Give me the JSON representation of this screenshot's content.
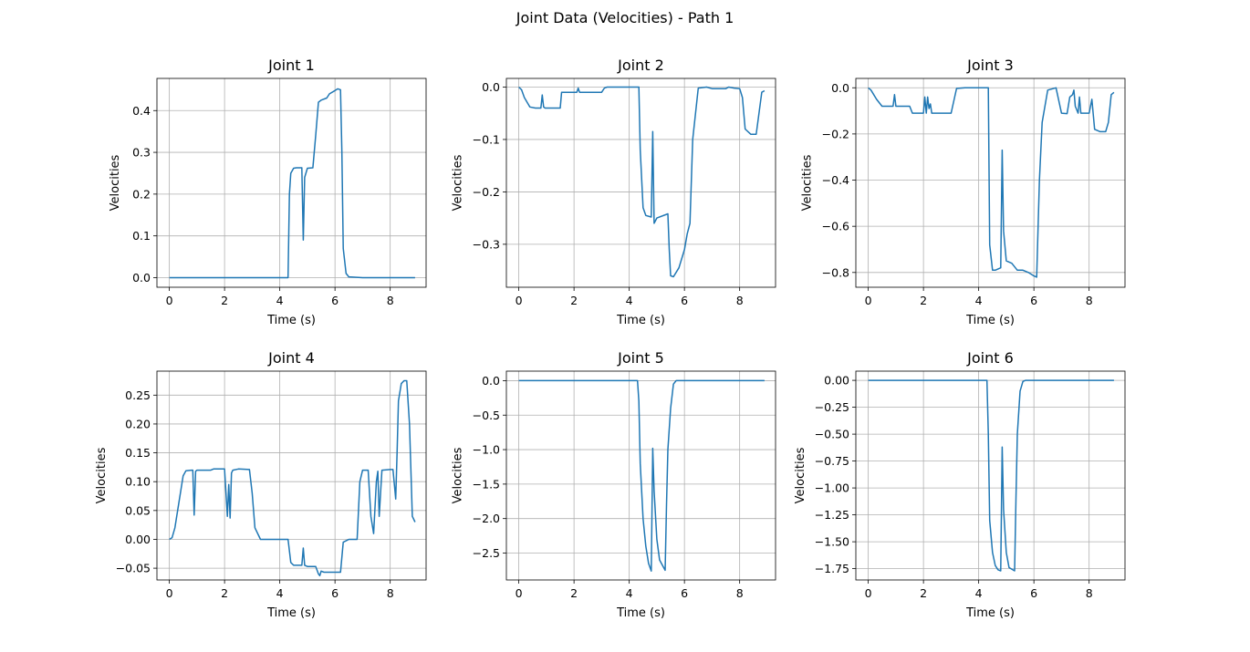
{
  "figure": {
    "title": "Joint Data (Velocities) - Path 1"
  },
  "chart_data": [
    {
      "type": "line",
      "title": "Joint 1",
      "xlabel": "Time (s)",
      "ylabel": "Velocities",
      "xlim": [
        -0.45,
        9.3
      ],
      "ylim": [
        -0.023,
        0.477
      ],
      "xticks": [
        0,
        2,
        4,
        6,
        8
      ],
      "xtick_labels": [
        "0",
        "2",
        "4",
        "6",
        "8"
      ],
      "yticks": [
        0.0,
        0.1,
        0.2,
        0.3,
        0.4
      ],
      "ytick_labels": [
        "0.0",
        "0.1",
        "0.2",
        "0.3",
        "0.4"
      ],
      "grid": true,
      "color": "#1f77b4",
      "series": [
        {
          "x": [
            0.0,
            0.5,
            1.0,
            2.0,
            3.0,
            4.0,
            4.3,
            4.35,
            4.4,
            4.5,
            4.6,
            4.8,
            4.85,
            4.9,
            5.0,
            5.2,
            5.3,
            5.4,
            5.5,
            5.7,
            5.8,
            6.0,
            6.1,
            6.2,
            6.25,
            6.3,
            6.4,
            6.5,
            7.0,
            8.0,
            8.9
          ],
          "y": [
            0.0,
            0.0,
            0.0,
            0.0,
            0.0,
            0.0,
            0.0,
            0.2,
            0.25,
            0.262,
            0.263,
            0.263,
            0.09,
            0.24,
            0.262,
            0.263,
            0.34,
            0.42,
            0.425,
            0.43,
            0.44,
            0.448,
            0.452,
            0.45,
            0.3,
            0.07,
            0.01,
            0.002,
            0.0,
            0.0,
            0.0
          ]
        }
      ]
    },
    {
      "type": "line",
      "title": "Joint 2",
      "xlabel": "Time (s)",
      "ylabel": "Velocities",
      "xlim": [
        -0.45,
        9.3
      ],
      "ylim": [
        -0.382,
        0.0165
      ],
      "xticks": [
        0,
        2,
        4,
        6,
        8
      ],
      "xtick_labels": [
        "0",
        "2",
        "4",
        "6",
        "8"
      ],
      "yticks": [
        0.0,
        -0.1,
        -0.2,
        -0.3
      ],
      "ytick_labels": [
        "0.0",
        "−0.1",
        "−0.2",
        "−0.3"
      ],
      "grid": true,
      "color": "#1f77b4",
      "series": [
        {
          "x": [
            0.0,
            0.1,
            0.2,
            0.4,
            0.6,
            0.8,
            0.85,
            0.9,
            0.95,
            1.0,
            1.5,
            1.55,
            1.6,
            1.8,
            2.0,
            2.1,
            2.15,
            2.2,
            2.3,
            2.5,
            3.0,
            3.1,
            3.2,
            4.0,
            4.35,
            4.4,
            4.5,
            4.6,
            4.8,
            4.85,
            4.9,
            5.0,
            5.4,
            5.45,
            5.5,
            5.6,
            5.8,
            6.0,
            6.1,
            6.2,
            6.3,
            6.5,
            6.8,
            7.0,
            7.5,
            7.6,
            7.8,
            8.0,
            8.1,
            8.2,
            8.4,
            8.6,
            8.8,
            8.9
          ],
          "y": [
            0.0,
            -0.005,
            -0.02,
            -0.038,
            -0.04,
            -0.04,
            -0.015,
            -0.038,
            -0.04,
            -0.04,
            -0.04,
            -0.01,
            -0.01,
            -0.01,
            -0.01,
            -0.01,
            -0.002,
            -0.01,
            -0.01,
            -0.01,
            -0.01,
            -0.002,
            0.0,
            0.0,
            0.0,
            -0.12,
            -0.23,
            -0.245,
            -0.248,
            -0.085,
            -0.26,
            -0.25,
            -0.242,
            -0.31,
            -0.36,
            -0.362,
            -0.345,
            -0.31,
            -0.28,
            -0.26,
            -0.1,
            -0.002,
            0.0,
            -0.003,
            -0.003,
            0.0,
            -0.002,
            -0.003,
            -0.02,
            -0.08,
            -0.09,
            -0.09,
            -0.01,
            -0.007
          ]
        }
      ]
    },
    {
      "type": "line",
      "title": "Joint 3",
      "xlabel": "Time (s)",
      "ylabel": "Velocities",
      "xlim": [
        -0.45,
        9.3
      ],
      "ylim": [
        -0.864,
        0.0405
      ],
      "xticks": [
        0,
        2,
        4,
        6,
        8
      ],
      "xtick_labels": [
        "0",
        "2",
        "4",
        "6",
        "8"
      ],
      "yticks": [
        0.0,
        -0.2,
        -0.4,
        -0.6,
        -0.8
      ],
      "ytick_labels": [
        "0.0",
        "−0.2",
        "−0.4",
        "−0.6",
        "−0.8"
      ],
      "grid": true,
      "color": "#1f77b4",
      "series": [
        {
          "x": [
            0.0,
            0.1,
            0.3,
            0.5,
            0.9,
            0.95,
            1.0,
            1.5,
            1.6,
            2.0,
            2.05,
            2.1,
            2.15,
            2.2,
            2.25,
            2.3,
            2.5,
            3.0,
            3.2,
            3.5,
            4.0,
            4.35,
            4.4,
            4.5,
            4.6,
            4.8,
            4.85,
            4.9,
            5.0,
            5.2,
            5.4,
            5.5,
            5.6,
            5.8,
            6.0,
            6.1,
            6.2,
            6.3,
            6.5,
            6.8,
            7.0,
            7.2,
            7.3,
            7.4,
            7.45,
            7.5,
            7.6,
            7.65,
            7.7,
            8.0,
            8.1,
            8.2,
            8.4,
            8.6,
            8.7,
            8.8,
            8.9
          ],
          "y": [
            0.0,
            -0.01,
            -0.05,
            -0.08,
            -0.08,
            -0.03,
            -0.08,
            -0.08,
            -0.11,
            -0.11,
            -0.04,
            -0.11,
            -0.04,
            -0.09,
            -0.07,
            -0.11,
            -0.11,
            -0.11,
            -0.003,
            0.0,
            0.0,
            0.0,
            -0.68,
            -0.79,
            -0.79,
            -0.78,
            -0.27,
            -0.62,
            -0.75,
            -0.76,
            -0.79,
            -0.79,
            -0.79,
            -0.8,
            -0.815,
            -0.82,
            -0.4,
            -0.15,
            -0.01,
            0.0,
            -0.11,
            -0.112,
            -0.04,
            -0.03,
            -0.01,
            -0.08,
            -0.11,
            -0.04,
            -0.11,
            -0.11,
            -0.05,
            -0.18,
            -0.19,
            -0.19,
            -0.15,
            -0.03,
            -0.02
          ]
        }
      ]
    },
    {
      "type": "line",
      "title": "Joint 4",
      "xlabel": "Time (s)",
      "ylabel": "Velocities",
      "xlim": [
        -0.45,
        9.3
      ],
      "ylim": [
        -0.0704,
        0.2916
      ],
      "xticks": [
        0,
        2,
        4,
        6,
        8
      ],
      "xtick_labels": [
        "0",
        "2",
        "4",
        "6",
        "8"
      ],
      "yticks": [
        -0.05,
        0.0,
        0.05,
        0.1,
        0.15,
        0.2,
        0.25
      ],
      "ytick_labels": [
        "−0.05",
        "0.00",
        "0.05",
        "0.10",
        "0.15",
        "0.20",
        "0.25"
      ],
      "grid": true,
      "color": "#1f77b4",
      "series": [
        {
          "x": [
            0.0,
            0.1,
            0.2,
            0.3,
            0.4,
            0.5,
            0.6,
            0.8,
            0.85,
            0.9,
            0.95,
            1.0,
            1.5,
            1.6,
            1.8,
            2.0,
            2.1,
            2.15,
            2.2,
            2.25,
            2.3,
            2.5,
            2.9,
            3.0,
            3.1,
            3.3,
            4.0,
            4.3,
            4.4,
            4.5,
            4.8,
            4.85,
            4.9,
            5.0,
            5.3,
            5.4,
            5.45,
            5.5,
            5.6,
            6.0,
            6.2,
            6.3,
            6.5,
            6.8,
            6.9,
            7.0,
            7.2,
            7.3,
            7.4,
            7.5,
            7.55,
            7.6,
            7.7,
            8.0,
            8.1,
            8.2,
            8.25,
            8.3,
            8.4,
            8.5,
            8.6,
            8.7,
            8.8,
            8.9
          ],
          "y": [
            0.0,
            0.003,
            0.02,
            0.05,
            0.08,
            0.11,
            0.119,
            0.12,
            0.12,
            0.042,
            0.118,
            0.12,
            0.12,
            0.122,
            0.122,
            0.122,
            0.04,
            0.095,
            0.037,
            0.115,
            0.12,
            0.122,
            0.121,
            0.08,
            0.02,
            0.0,
            0.0,
            0.0,
            -0.04,
            -0.045,
            -0.045,
            -0.015,
            -0.045,
            -0.047,
            -0.047,
            -0.06,
            -0.063,
            -0.055,
            -0.057,
            -0.057,
            -0.057,
            -0.005,
            0.0,
            0.0,
            0.1,
            0.12,
            0.12,
            0.04,
            0.01,
            0.1,
            0.118,
            0.04,
            0.12,
            0.121,
            0.121,
            0.07,
            0.15,
            0.24,
            0.27,
            0.275,
            0.275,
            0.2,
            0.04,
            0.03
          ]
        }
      ]
    },
    {
      "type": "line",
      "title": "Joint 5",
      "xlabel": "Time (s)",
      "ylabel": "Velocities",
      "xlim": [
        -0.45,
        9.3
      ],
      "ylim": [
        -2.89,
        0.138
      ],
      "xticks": [
        0,
        2,
        4,
        6,
        8
      ],
      "xtick_labels": [
        "0",
        "2",
        "4",
        "6",
        "8"
      ],
      "yticks": [
        0.0,
        -0.5,
        -1.0,
        -1.5,
        -2.0,
        -2.5
      ],
      "ytick_labels": [
        "0.0",
        "−0.5",
        "−1.0",
        "−1.5",
        "−2.0",
        "−2.5"
      ],
      "grid": true,
      "color": "#1f77b4",
      "series": [
        {
          "x": [
            0.0,
            1.0,
            2.0,
            3.0,
            4.0,
            4.3,
            4.35,
            4.4,
            4.5,
            4.6,
            4.7,
            4.8,
            4.85,
            4.9,
            5.0,
            5.1,
            5.3,
            5.35,
            5.4,
            5.5,
            5.6,
            5.7,
            6.0,
            7.0,
            8.0,
            8.9
          ],
          "y": [
            0.0,
            0.0,
            0.0,
            0.0,
            0.0,
            0.0,
            -0.3,
            -1.2,
            -2.0,
            -2.4,
            -2.65,
            -2.76,
            -0.98,
            -1.6,
            -2.3,
            -2.6,
            -2.75,
            -1.8,
            -1.0,
            -0.4,
            -0.05,
            0.0,
            0.0,
            0.0,
            0.0,
            0.0
          ]
        }
      ]
    },
    {
      "type": "line",
      "title": "Joint 6",
      "xlabel": "Time (s)",
      "ylabel": "Velocities",
      "xlim": [
        -0.45,
        9.3
      ],
      "ylim": [
        -1.855,
        0.0855
      ],
      "xticks": [
        0,
        2,
        4,
        6,
        8
      ],
      "xtick_labels": [
        "0",
        "2",
        "4",
        "6",
        "8"
      ],
      "yticks": [
        0.0,
        -0.25,
        -0.5,
        -0.75,
        -1.0,
        -1.25,
        -1.5,
        -1.75
      ],
      "ytick_labels": [
        "0.00",
        "−0.25",
        "−0.50",
        "−0.75",
        "−1.00",
        "−1.25",
        "−1.50",
        "−1.75"
      ],
      "grid": true,
      "color": "#1f77b4",
      "series": [
        {
          "x": [
            0.0,
            1.0,
            2.0,
            3.0,
            4.0,
            4.3,
            4.35,
            4.4,
            4.5,
            4.6,
            4.7,
            4.8,
            4.85,
            4.9,
            5.0,
            5.1,
            5.3,
            5.35,
            5.4,
            5.5,
            5.6,
            5.7,
            6.0,
            7.0,
            8.0,
            8.9
          ],
          "y": [
            0.0,
            0.0,
            0.0,
            0.0,
            0.0,
            0.0,
            -0.5,
            -1.3,
            -1.6,
            -1.72,
            -1.76,
            -1.77,
            -0.62,
            -1.2,
            -1.6,
            -1.74,
            -1.77,
            -1.1,
            -0.5,
            -0.1,
            -0.01,
            0.0,
            0.0,
            0.0,
            0.0,
            0.0
          ]
        }
      ]
    }
  ]
}
